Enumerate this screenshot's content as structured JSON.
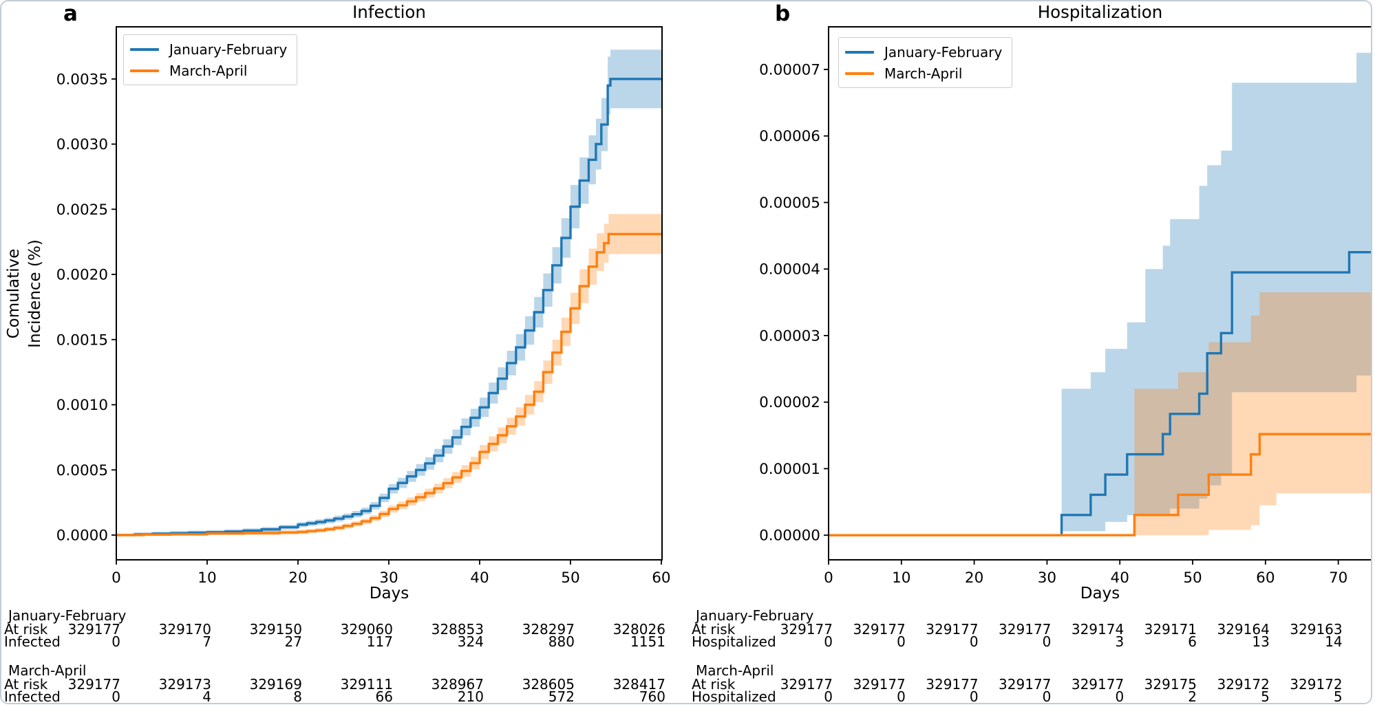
{
  "figure": {
    "panels": [
      {
        "letter": "a",
        "title": "Infection",
        "xlabel": "Days",
        "ylabel_line1": "Comulative",
        "ylabel_line2": "Incidence (%)",
        "legend": [
          "January-February",
          "March-April"
        ]
      },
      {
        "letter": "b",
        "title": "Hospitalization",
        "xlabel": "Days",
        "legend": [
          "January-February",
          "March-April"
        ]
      }
    ]
  },
  "colors": {
    "series_blue": "#1f77b4",
    "series_orange": "#ff7f0e",
    "band_opacity": 0.3,
    "axis": "#000000",
    "text": "#000000",
    "legend_border": "#cccccc",
    "figure_border": "#c3cdd8"
  },
  "chart_data": [
    {
      "type": "line",
      "panel": "a",
      "title": "Infection",
      "xlabel": "Days",
      "ylabel": "Comulative Incidence (%)",
      "xlim": [
        0,
        60.08
      ],
      "ylim": [
        -0.00019,
        0.0039
      ],
      "grid": false,
      "legend_position": "upper-left",
      "xticks": [
        0,
        10,
        20,
        30,
        40,
        50,
        60
      ],
      "yticks": [
        {
          "v": 0.0,
          "label": "0.0000"
        },
        {
          "v": 0.0005,
          "label": "0.0005"
        },
        {
          "v": 0.001,
          "label": "0.0010"
        },
        {
          "v": 0.0015,
          "label": "0.0015"
        },
        {
          "v": 0.002,
          "label": "0.0020"
        },
        {
          "v": 0.0025,
          "label": "0.0025"
        },
        {
          "v": 0.003,
          "label": "0.0030"
        },
        {
          "v": 0.0035,
          "label": "0.0035"
        }
      ],
      "band_rel": 0.06,
      "band_abs": 1.5e-05,
      "series": [
        {
          "name": "January-February",
          "color_key": "series_blue",
          "xend": 60.08,
          "points": [
            [
              0,
              0
            ],
            [
              2,
              5e-06
            ],
            [
              4,
              1e-05
            ],
            [
              6,
              1.4e-05
            ],
            [
              8,
              1.8e-05
            ],
            [
              10,
              2.1e-05
            ],
            [
              12,
              2.7e-05
            ],
            [
              14,
              3.4e-05
            ],
            [
              16,
              4.4e-05
            ],
            [
              18,
              6e-05
            ],
            [
              20,
              8e-05
            ],
            [
              21,
              9e-05
            ],
            [
              22,
              0.0001
            ],
            [
              23,
              0.000112
            ],
            [
              24,
              0.000126
            ],
            [
              25,
              0.000142
            ],
            [
              26,
              0.00016
            ],
            [
              27,
              0.000185
            ],
            [
              28,
              0.000225
            ],
            [
              29,
              0.000285
            ],
            [
              30,
              0.000355
            ],
            [
              31,
              0.0004
            ],
            [
              32,
              0.00045
            ],
            [
              33,
              0.0005
            ],
            [
              34,
              0.00055
            ],
            [
              35,
              0.00061
            ],
            [
              36,
              0.00068
            ],
            [
              37,
              0.00075
            ],
            [
              38,
              0.00083
            ],
            [
              39,
              0.0009
            ],
            [
              40,
              0.00098
            ],
            [
              41,
              0.00109
            ],
            [
              42,
              0.0012
            ],
            [
              43,
              0.00132
            ],
            [
              44,
              0.00144
            ],
            [
              45,
              0.00157
            ],
            [
              46,
              0.00171
            ],
            [
              47,
              0.00188
            ],
            [
              48,
              0.00207
            ],
            [
              49,
              0.00228
            ],
            [
              50,
              0.00252
            ],
            [
              51,
              0.00272
            ],
            [
              52,
              0.00288
            ],
            [
              52.8,
              0.003
            ],
            [
              53.4,
              0.00315
            ],
            [
              54.1,
              0.00345
            ],
            [
              54.4,
              0.0035
            ]
          ]
        },
        {
          "name": "March-April",
          "color_key": "series_orange",
          "xend": 60.08,
          "points": [
            [
              0,
              0
            ],
            [
              3,
              3e-06
            ],
            [
              6,
              6e-06
            ],
            [
              10,
              1.2e-05
            ],
            [
              14,
              1.6e-05
            ],
            [
              18,
              2e-05
            ],
            [
              20,
              2.4e-05
            ],
            [
              21,
              3e-05
            ],
            [
              22,
              3.6e-05
            ],
            [
              23,
              4.5e-05
            ],
            [
              24,
              5.6e-05
            ],
            [
              25,
              7e-05
            ],
            [
              26,
              8.6e-05
            ],
            [
              27,
              0.000105
            ],
            [
              28,
              0.00013
            ],
            [
              29,
              0.000162
            ],
            [
              30,
              0.0002
            ],
            [
              31,
              0.000228
            ],
            [
              32,
              0.000258
            ],
            [
              33,
              0.00029
            ],
            [
              34,
              0.000322
            ],
            [
              35,
              0.000358
            ],
            [
              36,
              0.000398
            ],
            [
              37,
              0.000442
            ],
            [
              38,
              0.000492
            ],
            [
              39,
              0.000552
            ],
            [
              40,
              0.000638
            ],
            [
              41,
              0.0007
            ],
            [
              42,
              0.000765
            ],
            [
              43,
              0.000835
            ],
            [
              44,
              0.00091
            ],
            [
              45,
              0.001
            ],
            [
              46,
              0.0011
            ],
            [
              47,
              0.00125
            ],
            [
              48,
              0.0014
            ],
            [
              49,
              0.00156
            ],
            [
              50,
              0.00174
            ],
            [
              51,
              0.00191
            ],
            [
              52,
              0.00206
            ],
            [
              52.9,
              0.00217
            ],
            [
              53.7,
              0.00224
            ],
            [
              54.2,
              0.00231
            ]
          ]
        }
      ],
      "risk_table": {
        "column_days": [
          0,
          10,
          20,
          30,
          40,
          50,
          60
        ],
        "groups": [
          {
            "name": "January-February",
            "rows": [
              {
                "label": "At risk",
                "values": [
                  329177,
                  329170,
                  329150,
                  329060,
                  328853,
                  328297,
                  328026
                ]
              },
              {
                "label": "Infected",
                "values": [
                  0,
                  7,
                  27,
                  117,
                  324,
                  880,
                  1151
                ]
              }
            ]
          },
          {
            "name": "March-April",
            "rows": [
              {
                "label": "At risk",
                "values": [
                  329177,
                  329173,
                  329169,
                  329111,
                  328967,
                  328605,
                  328417
                ]
              },
              {
                "label": "Infected",
                "values": [
                  0,
                  4,
                  8,
                  66,
                  210,
                  572,
                  760
                ]
              }
            ]
          }
        ]
      }
    },
    {
      "type": "line",
      "panel": "b",
      "title": "Hospitalization",
      "xlabel": "Days",
      "ylabel": "",
      "xlim": [
        0,
        74.57
      ],
      "ylim": [
        -3.7e-06,
        7.64e-05
      ],
      "grid": false,
      "legend_position": "upper-left",
      "xticks": [
        0,
        10,
        20,
        30,
        40,
        50,
        60,
        70
      ],
      "yticks": [
        {
          "v": 0.0,
          "label": "0.00000"
        },
        {
          "v": 1e-05,
          "label": "0.00001"
        },
        {
          "v": 2e-05,
          "label": "0.00002"
        },
        {
          "v": 3e-05,
          "label": "0.00003"
        },
        {
          "v": 4e-05,
          "label": "0.00004"
        },
        {
          "v": 5e-05,
          "label": "0.00005"
        },
        {
          "v": 6e-05,
          "label": "0.00006"
        },
        {
          "v": 7e-05,
          "label": "0.00007"
        }
      ],
      "series": [
        {
          "name": "January-February",
          "color_key": "series_blue",
          "xend": 74.57,
          "points": [
            [
              0,
              0
            ],
            [
              32,
              3.04e-06
            ],
            [
              36,
              6.08e-06
            ],
            [
              38,
              9.11e-06
            ],
            [
              41,
              1.215e-05
            ],
            [
              45.9,
              1.519e-05
            ],
            [
              46.9,
              1.823e-05
            ],
            [
              50.9,
              2.127e-05
            ],
            [
              52,
              2.734e-05
            ],
            [
              53.9,
              3.038e-05
            ],
            [
              55.4,
              3.949e-05
            ],
            [
              71.5,
              4.253e-05
            ]
          ],
          "band_upper": [
            [
              0,
              0
            ],
            [
              32,
              2.2e-05
            ],
            [
              36,
              2.45e-05
            ],
            [
              38,
              2.8e-05
            ],
            [
              41,
              3.2e-05
            ],
            [
              43.5,
              4e-05
            ],
            [
              45.9,
              4.35e-05
            ],
            [
              46.9,
              4.75e-05
            ],
            [
              50.9,
              5.25e-05
            ],
            [
              52,
              5.56e-05
            ],
            [
              53.9,
              5.78e-05
            ],
            [
              55.4,
              6.8e-05
            ],
            [
              72.5,
              7.25e-05
            ]
          ],
          "band_lower": [
            [
              0,
              0
            ],
            [
              32,
              6e-07
            ],
            [
              38,
              2e-06
            ],
            [
              41,
              3e-06
            ],
            [
              46.9,
              4e-06
            ],
            [
              50.9,
              5.5e-06
            ],
            [
              52,
              7.5e-06
            ],
            [
              53.9,
              9e-06
            ],
            [
              55.4,
              2.15e-05
            ],
            [
              72.5,
              2.4e-05
            ]
          ]
        },
        {
          "name": "March-April",
          "color_key": "series_orange",
          "xend": 74.57,
          "points": [
            [
              0,
              0
            ],
            [
              42,
              3.04e-06
            ],
            [
              48,
              6.08e-06
            ],
            [
              52.2,
              9.11e-06
            ],
            [
              58,
              1.215e-05
            ],
            [
              59.2,
              1.519e-05
            ]
          ],
          "band_upper": [
            [
              0,
              0
            ],
            [
              42,
              2.2e-05
            ],
            [
              48,
              2.45e-05
            ],
            [
              52.2,
              2.9e-05
            ],
            [
              58,
              3.3e-05
            ],
            [
              59.2,
              3.65e-05
            ]
          ],
          "band_lower": [
            [
              0,
              0
            ],
            [
              52.2,
              8e-07
            ],
            [
              58,
              1.5e-06
            ],
            [
              59.2,
              4.5e-06
            ],
            [
              61.5,
              6.3e-06
            ]
          ]
        }
      ],
      "risk_table": {
        "column_days": [
          0,
          10,
          20,
          30,
          40,
          50,
          60,
          70
        ],
        "groups": [
          {
            "name": "January-February",
            "rows": [
              {
                "label": "At risk",
                "values": [
                  329177,
                  329177,
                  329177,
                  329177,
                  329174,
                  329171,
                  329164,
                  329163
                ]
              },
              {
                "label": "Hospitalized",
                "values": [
                  0,
                  0,
                  0,
                  0,
                  3,
                  6,
                  13,
                  14
                ]
              }
            ]
          },
          {
            "name": "March-April",
            "rows": [
              {
                "label": "At risk",
                "values": [
                  329177,
                  329177,
                  329177,
                  329177,
                  329177,
                  329175,
                  329172,
                  329172
                ]
              },
              {
                "label": "Hospitalized",
                "values": [
                  0,
                  0,
                  0,
                  0,
                  0,
                  2,
                  5,
                  5
                ]
              }
            ]
          }
        ]
      }
    }
  ]
}
